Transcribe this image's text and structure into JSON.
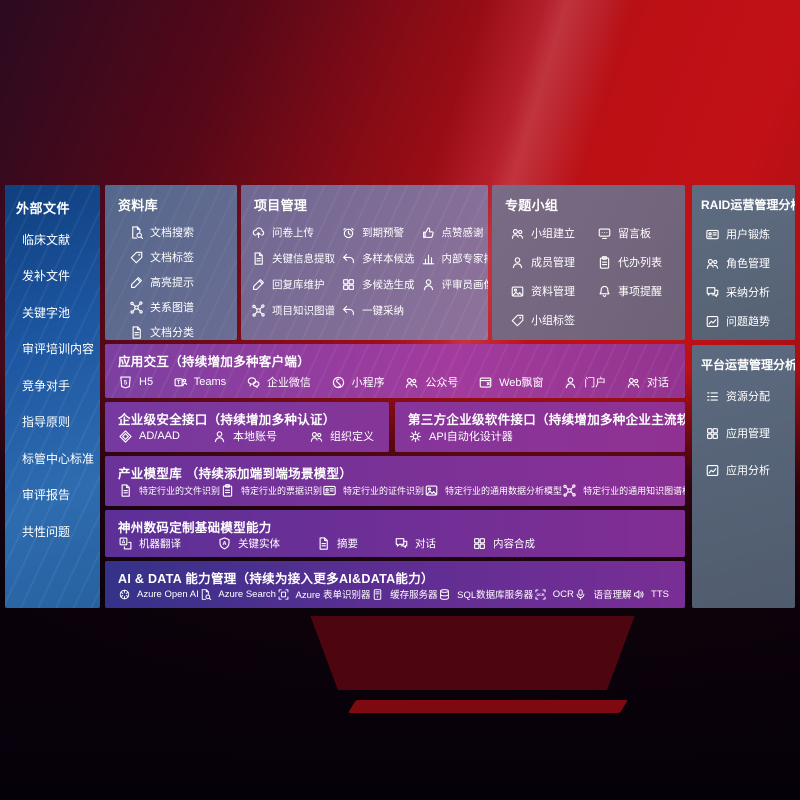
{
  "palette": {
    "background_red": "#bb1015",
    "background_dark": "#050109",
    "sidebar_blue": "#1c55a0",
    "panel_slate": "#5e6c82",
    "row_magenta": "#a23b9d",
    "row_indigo": "#343289",
    "text": "#ffffff"
  },
  "sidebar": {
    "title": "外部文件",
    "items": [
      "临床文献",
      "发补文件",
      "关键字池",
      "审评培训内容",
      "竞争对手",
      "指导原则",
      "标管中心标准",
      "审评报告",
      "共性问题"
    ]
  },
  "top_panels": [
    {
      "id": "repository",
      "title": "资料库",
      "items": [
        {
          "label": "文档搜索",
          "icon": "doc-search"
        },
        {
          "label": "文档标签",
          "icon": "tag"
        },
        {
          "label": "高亮提示",
          "icon": "highlight-pen"
        },
        {
          "label": "关系图谱",
          "icon": "knowledge-graph"
        },
        {
          "label": "文档分类",
          "icon": "doc-category"
        }
      ]
    },
    {
      "id": "project-management",
      "title": "项目管理",
      "items": [
        {
          "label": "问卷上传",
          "icon": "cloud-upload"
        },
        {
          "label": "到期预警",
          "icon": "alarm"
        },
        {
          "label": "点赞感谢",
          "icon": "thumbs-up"
        },
        {
          "label": "关键信息提取",
          "icon": "doc-extract"
        },
        {
          "label": "多样本候选",
          "icon": "reply-arrow"
        },
        {
          "label": "内部专家排名",
          "icon": "ranking-chart"
        },
        {
          "label": "回复库维护",
          "icon": "edit-pen"
        },
        {
          "label": "多候选生成",
          "icon": "grid-generate"
        },
        {
          "label": "评审员画像",
          "icon": "person"
        },
        {
          "label": "项目知识图谱",
          "icon": "knowledge-graph"
        },
        {
          "label": "一键采纳",
          "icon": "adopt-arrow"
        }
      ]
    },
    {
      "id": "topic-groups",
      "title": "专题小组",
      "items": [
        {
          "label": "小组建立",
          "icon": "people-group"
        },
        {
          "label": "留言板",
          "icon": "bbs-board"
        },
        {
          "label": "成员管理",
          "icon": "member"
        },
        {
          "label": "代办列表",
          "icon": "todo-clipboard"
        },
        {
          "label": "资料管理",
          "icon": "photo-album"
        },
        {
          "label": "事项提醒",
          "icon": "bell"
        },
        {
          "label": "小组标签",
          "icon": "tag"
        }
      ]
    }
  ],
  "right_panels": [
    {
      "id": "raid-analytics",
      "title": "RAID运营管理分析",
      "items": [
        {
          "label": "用户锻炼",
          "icon": "id-card"
        },
        {
          "label": "角色管理",
          "icon": "roles-people"
        },
        {
          "label": "采纳分析",
          "icon": "qa-chat"
        },
        {
          "label": "问题趋势",
          "icon": "trend-chart"
        }
      ]
    },
    {
      "id": "platform-analytics",
      "title": "平台运营管理分析",
      "items": [
        {
          "label": "资源分配",
          "icon": "resource-list"
        },
        {
          "label": "应用管理",
          "icon": "app-grid"
        },
        {
          "label": "应用分析",
          "icon": "app-analytics"
        }
      ]
    }
  ],
  "rows": [
    {
      "panels": [
        {
          "id": "app-interaction",
          "title": "应用交互（持续增加多种客户端）",
          "items": [
            {
              "label": "H5",
              "icon": "h5"
            },
            {
              "label": "Teams",
              "icon": "teams"
            },
            {
              "label": "企业微信",
              "icon": "wechat-work"
            },
            {
              "label": "小程序",
              "icon": "miniprogram"
            },
            {
              "label": "公众号",
              "icon": "official-account"
            },
            {
              "label": "Web飘窗",
              "icon": "web-window"
            },
            {
              "label": "门户",
              "icon": "portal-user"
            },
            {
              "label": "对话",
              "icon": "conversation"
            }
          ]
        }
      ]
    },
    {
      "panels": [
        {
          "id": "security-api",
          "title": "企业级安全接口（持续增加多种认证）",
          "items": [
            {
              "label": "AD/AAD",
              "icon": "ad-diamond"
            },
            {
              "label": "本地账号",
              "icon": "local-account"
            },
            {
              "label": "组织定义",
              "icon": "org-people"
            }
          ]
        },
        {
          "id": "third-party-api",
          "title": "第三方企业级软件接口（持续增加多种企业主流软件接口）",
          "items": [
            {
              "label": "API自动化设计器",
              "icon": "api-gear"
            }
          ]
        }
      ]
    },
    {
      "panels": [
        {
          "id": "industry-models",
          "title": "产业模型库 （持续添加端到端场景模型）",
          "items": [
            {
              "label": "特定行业的文件识别",
              "icon": "doc-recognize"
            },
            {
              "label": "特定行业的票据识别",
              "icon": "receipt-list"
            },
            {
              "label": "特定行业的证件识别",
              "icon": "id-card"
            },
            {
              "label": "特定行业的通用数据分析模型",
              "icon": "data-image"
            },
            {
              "label": "特定行业的通用知识图谱模型",
              "icon": "knowledge-graph"
            }
          ]
        }
      ]
    },
    {
      "panels": [
        {
          "id": "base-models",
          "title": "神州数码定制基础模型能力",
          "items": [
            {
              "label": "机器翻译",
              "icon": "translate"
            },
            {
              "label": "关键实体",
              "icon": "entity-badge"
            },
            {
              "label": "摘要",
              "icon": "summary-doc"
            },
            {
              "label": "对话",
              "icon": "chat-bubble"
            },
            {
              "label": "内容合成",
              "icon": "compose-grid"
            }
          ]
        }
      ]
    },
    {
      "panels": [
        {
          "id": "ai-data",
          "title": "AI & DATA 能力管理（持续为接入更多AI&DATA能力）",
          "items": [
            {
              "label": "Azure Open AI",
              "icon": "openai"
            },
            {
              "label": "Azure Search",
              "icon": "azure-search"
            },
            {
              "label": "Azure 表单识别器",
              "icon": "form-recognizer"
            },
            {
              "label": "缓存服务器",
              "icon": "cache-server"
            },
            {
              "label": "SQL数据库服务器",
              "icon": "sql-database"
            },
            {
              "label": "OCR",
              "icon": "ocr"
            },
            {
              "label": "语音理解",
              "icon": "speech-understanding"
            },
            {
              "label": "TTS",
              "icon": "tts"
            }
          ]
        }
      ]
    }
  ]
}
